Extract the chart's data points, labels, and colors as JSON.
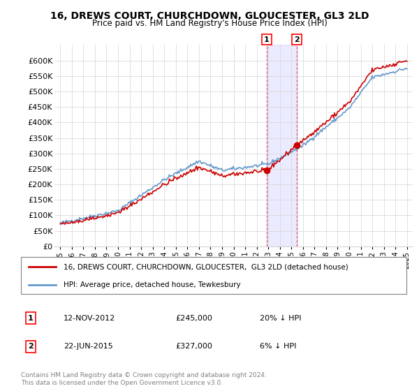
{
  "title": "16, DREWS COURT, CHURCHDOWN, GLOUCESTER, GL3 2LD",
  "subtitle": "Price paid vs. HM Land Registry's House Price Index (HPI)",
  "legend_line1": "16, DREWS COURT, CHURCHDOWN, GLOUCESTER,  GL3 2LD (detached house)",
  "legend_line2": "HPI: Average price, detached house, Tewkesbury",
  "annotation1": {
    "num": "1",
    "date": "12-NOV-2012",
    "price": "£245,000",
    "pct": "20% ↓ HPI"
  },
  "annotation2": {
    "num": "2",
    "date": "22-JUN-2015",
    "price": "£327,000",
    "pct": "6% ↓ HPI"
  },
  "footer": "Contains HM Land Registry data © Crown copyright and database right 2024.\nThis data is licensed under the Open Government Licence v3.0.",
  "hpi_color": "#6699cc",
  "price_color": "#cc0000",
  "ylim": [
    0,
    650000
  ],
  "yticks": [
    0,
    50000,
    100000,
    150000,
    200000,
    250000,
    300000,
    350000,
    400000,
    450000,
    500000,
    550000,
    600000
  ],
  "sale1_x": 2012.87,
  "sale1_y": 245000,
  "sale2_x": 2015.47,
  "sale2_y": 327000,
  "xlim_left": 1994.5,
  "xlim_right": 2025.5
}
